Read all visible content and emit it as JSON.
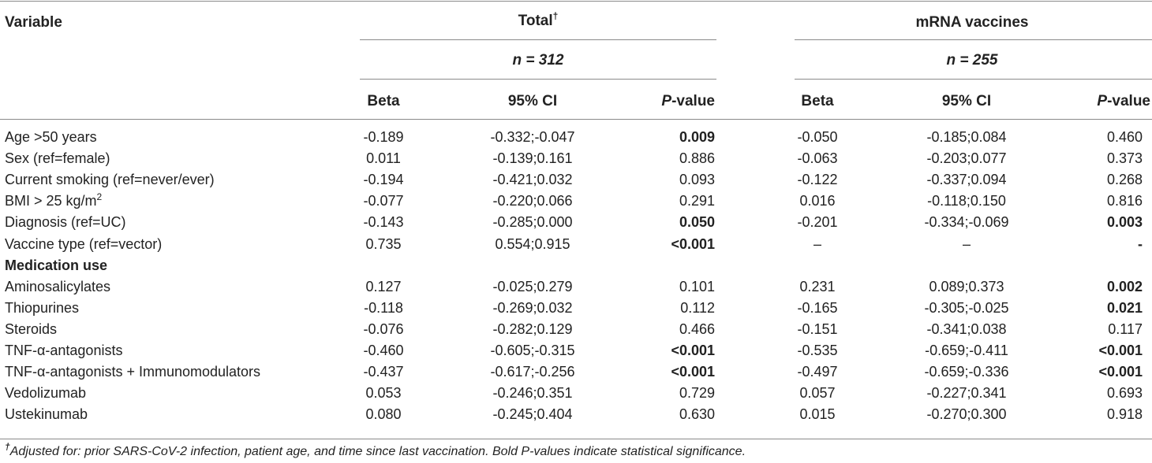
{
  "table": {
    "header": {
      "variable": "Variable",
      "groups": [
        {
          "title": "Total",
          "title_sup": "†",
          "n_label": "n = 312"
        },
        {
          "title": "mRNA vaccines",
          "title_sup": "",
          "n_label": "n = 255"
        }
      ],
      "col_beta": "Beta",
      "col_ci": "95% CI",
      "col_p_italic": "P",
      "col_p_rest": "-value"
    },
    "rows": [
      {
        "label": "Age >50 years",
        "t_beta": "-0.189",
        "t_ci": "-0.332;-0.047",
        "t_p": "0.009",
        "t_bold": true,
        "m_beta": "-0.050",
        "m_ci": "-0.185;0.084",
        "m_p": "0.460",
        "m_bold": false
      },
      {
        "label": "Sex (ref=female)",
        "t_beta": "0.011",
        "t_ci": "-0.139;0.161",
        "t_p": "0.886",
        "t_bold": false,
        "m_beta": "-0.063",
        "m_ci": "-0.203;0.077",
        "m_p": "0.373",
        "m_bold": false
      },
      {
        "label": "Current smoking (ref=never/ever)",
        "t_beta": "-0.194",
        "t_ci": "-0.421;0.032",
        "t_p": "0.093",
        "t_bold": false,
        "m_beta": "-0.122",
        "m_ci": "-0.337;0.094",
        "m_p": "0.268",
        "m_bold": false
      },
      {
        "label": "BMI > 25 kg/m",
        "label_sup": "2",
        "t_beta": "-0.077",
        "t_ci": "-0.220;0.066",
        "t_p": "0.291",
        "t_bold": false,
        "m_beta": "0.016",
        "m_ci": "-0.118;0.150",
        "m_p": "0.816",
        "m_bold": false
      },
      {
        "label": "Diagnosis (ref=UC)",
        "t_beta": "-0.143",
        "t_ci": "-0.285;0.000",
        "t_p": "0.050",
        "t_bold": true,
        "m_beta": "-0.201",
        "m_ci": "-0.334;-0.069",
        "m_p": "0.003",
        "m_bold": true
      },
      {
        "label": "Vaccine type (ref=vector)",
        "t_beta": "0.735",
        "t_ci": "0.554;0.915",
        "t_p": "<0.001",
        "t_bold": true,
        "m_beta": "–",
        "m_ci": "–",
        "m_p": "-",
        "m_bold": true
      },
      {
        "label": "Medication use",
        "section": true
      },
      {
        "label": "Aminosalicylates",
        "t_beta": "0.127",
        "t_ci": "-0.025;0.279",
        "t_p": "0.101",
        "t_bold": false,
        "m_beta": "0.231",
        "m_ci": "0.089;0.373",
        "m_p": "0.002",
        "m_bold": true
      },
      {
        "label": "Thiopurines",
        "t_beta": "-0.118",
        "t_ci": "-0.269;0.032",
        "t_p": "0.112",
        "t_bold": false,
        "m_beta": "-0.165",
        "m_ci": "-0.305;-0.025",
        "m_p": "0.021",
        "m_bold": true
      },
      {
        "label": "Steroids",
        "t_beta": "-0.076",
        "t_ci": "-0.282;0.129",
        "t_p": "0.466",
        "t_bold": false,
        "m_beta": "-0.151",
        "m_ci": "-0.341;0.038",
        "m_p": "0.117",
        "m_bold": false
      },
      {
        "label": "TNF-α-antagonists",
        "t_beta": "-0.460",
        "t_ci": "-0.605;-0.315",
        "t_p": "<0.001",
        "t_bold": true,
        "m_beta": "-0.535",
        "m_ci": "-0.659;-0.411",
        "m_p": "<0.001",
        "m_bold": true
      },
      {
        "label": "TNF-α-antagonists + Immunomodulators",
        "t_beta": "-0.437",
        "t_ci": "-0.617;-0.256",
        "t_p": "<0.001",
        "t_bold": true,
        "m_beta": "-0.497",
        "m_ci": "-0.659;-0.336",
        "m_p": "<0.001",
        "m_bold": true
      },
      {
        "label": "Vedolizumab",
        "t_beta": "0.053",
        "t_ci": "-0.246;0.351",
        "t_p": "0.729",
        "t_bold": false,
        "m_beta": "0.057",
        "m_ci": "-0.227;0.341",
        "m_p": "0.693",
        "m_bold": false
      },
      {
        "label": "Ustekinumab",
        "t_beta": "0.080",
        "t_ci": "-0.245;0.404",
        "t_p": "0.630",
        "t_bold": false,
        "m_beta": "0.015",
        "m_ci": "-0.270;0.300",
        "m_p": "0.918",
        "m_bold": false
      }
    ],
    "footnote_symbol": "†",
    "footnote": "Adjusted for: prior SARS-CoV-2 infection, patient age, and time since last vaccination. Bold P-values indicate statistical significance."
  }
}
